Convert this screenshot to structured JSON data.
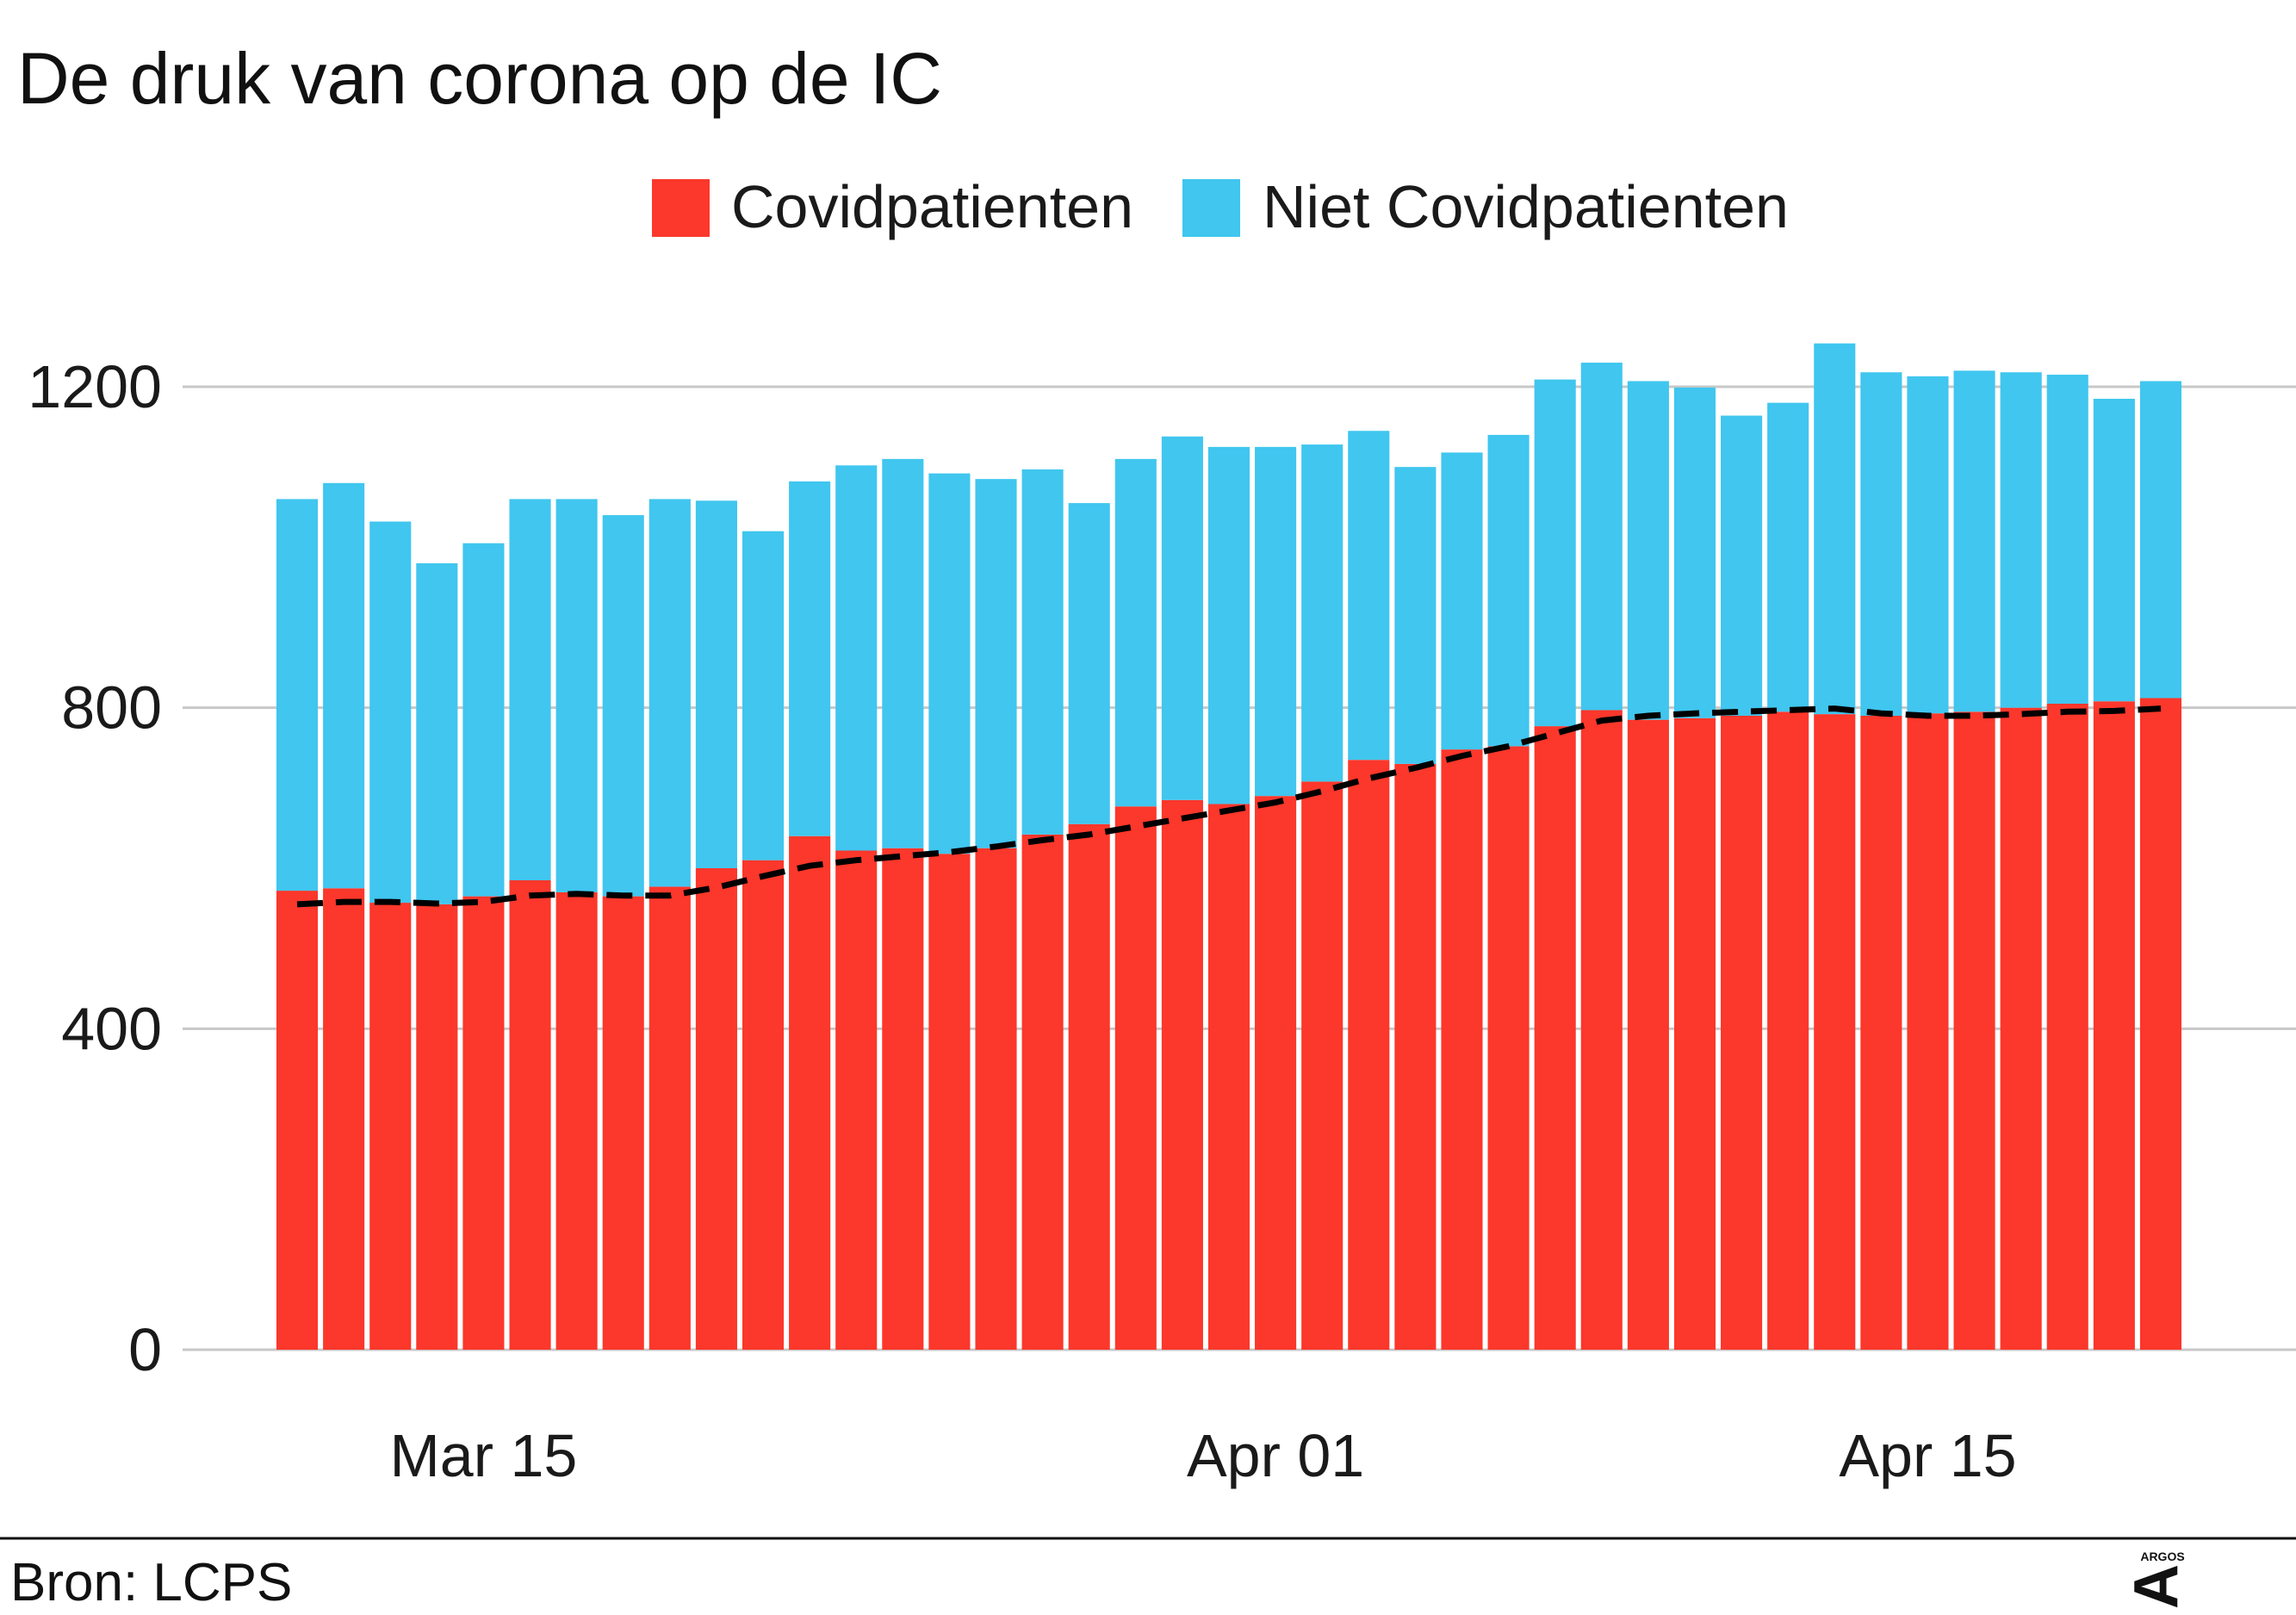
{
  "title": "De druk van corona op de IC",
  "source": "Bron: LCPS",
  "logo": {
    "text": "ARGOS",
    "glyph": "A"
  },
  "colors": {
    "covid": "#fc372b",
    "non_covid": "#40c6ef",
    "gridline": "#c8c8c8",
    "trend": "#000000",
    "text": "#1a1a1a"
  },
  "chart_data": {
    "type": "bar",
    "stacked": true,
    "title": "De druk van corona op de IC",
    "xlabel": "",
    "ylabel": "",
    "ylim": [
      0,
      1300
    ],
    "y_ticks": [
      0,
      400,
      800,
      1200
    ],
    "x_start": "2021-03-11",
    "x_ticks": [
      {
        "label": "Mar 15",
        "date": "2021-03-15"
      },
      {
        "label": "Apr 01",
        "date": "2021-04-01"
      },
      {
        "label": "Apr 15",
        "date": "2021-04-15"
      }
    ],
    "grid": true,
    "legend_position": "top",
    "categories": [
      "2021-03-11",
      "2021-03-12",
      "2021-03-13",
      "2021-03-14",
      "2021-03-15",
      "2021-03-16",
      "2021-03-17",
      "2021-03-18",
      "2021-03-19",
      "2021-03-20",
      "2021-03-21",
      "2021-03-22",
      "2021-03-23",
      "2021-03-24",
      "2021-03-25",
      "2021-03-26",
      "2021-03-27",
      "2021-03-28",
      "2021-03-29",
      "2021-03-30",
      "2021-03-31",
      "2021-04-01",
      "2021-04-02",
      "2021-04-03",
      "2021-04-04",
      "2021-04-05",
      "2021-04-06",
      "2021-04-07",
      "2021-04-08",
      "2021-04-09",
      "2021-04-10",
      "2021-04-11",
      "2021-04-12",
      "2021-04-13",
      "2021-04-14",
      "2021-04-15",
      "2021-04-16",
      "2021-04-17",
      "2021-04-18",
      "2021-04-19",
      "2021-04-20"
    ],
    "series": [
      {
        "name": "Covidpatienten",
        "values": [
          572,
          575,
          557,
          555,
          565,
          585,
          570,
          565,
          577,
          600,
          610,
          640,
          622,
          625,
          618,
          625,
          642,
          655,
          677,
          685,
          680,
          690,
          708,
          735,
          730,
          748,
          752,
          777,
          797,
          785,
          787,
          790,
          795,
          792,
          790,
          793,
          795,
          800,
          805,
          808,
          812
        ]
      },
      {
        "name": "Niet Covidpatienten",
        "values": [
          488,
          505,
          475,
          425,
          440,
          475,
          490,
          475,
          483,
          458,
          410,
          442,
          480,
          485,
          474,
          460,
          455,
          400,
          433,
          453,
          445,
          435,
          420,
          410,
          370,
          370,
          388,
          432,
          433,
          422,
          412,
          374,
          385,
          462,
          428,
          420,
          425,
          418,
          410,
          377,
          395
        ]
      }
    ],
    "trend": {
      "name": "",
      "style": "dashed",
      "values": [
        555,
        558,
        558,
        556,
        558,
        566,
        568,
        566,
        566,
        576,
        590,
        603,
        610,
        615,
        620,
        627,
        635,
        642,
        652,
        662,
        672,
        682,
        696,
        712,
        725,
        740,
        752,
        768,
        784,
        790,
        793,
        795,
        797,
        799,
        793,
        790,
        790,
        792,
        795,
        796,
        799
      ]
    }
  }
}
